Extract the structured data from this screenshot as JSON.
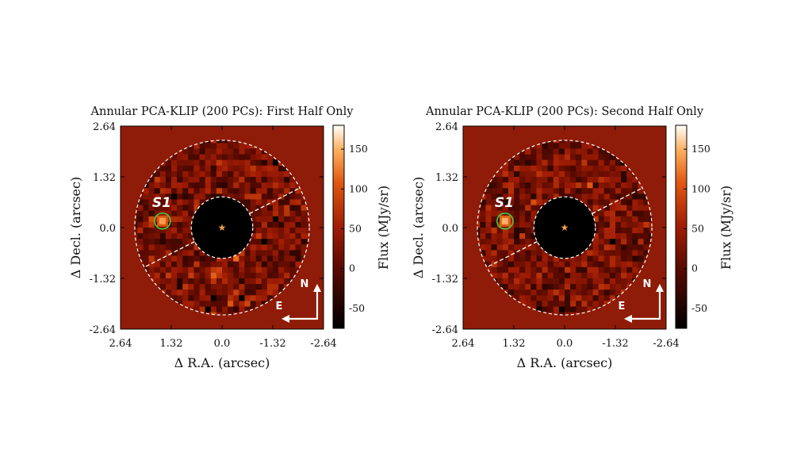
{
  "chart_data": [
    {
      "type": "heatmap",
      "title": "Annular PCA-KLIP (200 PCs): First Half Only",
      "xlabel": "Δ R.A. (arcsec)",
      "ylabel": "Δ Decl. (arcsec)",
      "xlim": [
        2.64,
        -2.64
      ],
      "ylim": [
        -2.64,
        2.64
      ],
      "xticks": [
        "2.64",
        "1.32",
        "0.0",
        "-1.32",
        "-2.64"
      ],
      "yticks": [
        "2.64",
        "1.32",
        "0.0",
        "-1.32",
        "-2.64"
      ],
      "colorbar": {
        "label": "Flux (MJy/sr)",
        "range": [
          -75,
          180
        ],
        "ticks": [
          "150",
          "100",
          "50",
          "0",
          "-50"
        ],
        "tick_values": [
          150,
          100,
          50,
          0,
          -50
        ]
      },
      "mask": {
        "inner_radius_arcsec": 0.8,
        "outer_radius_arcsec": 2.27,
        "divider_angle_deg": 27
      },
      "star": {
        "x": 0.0,
        "y": 0.0
      },
      "source": {
        "label": "S1",
        "x": 1.55,
        "y": 0.17,
        "peak_flux": 140
      },
      "compass": {
        "north": "N",
        "east": "E"
      },
      "seed": 11
    },
    {
      "type": "heatmap",
      "title": "Annular PCA-KLIP (200 PCs): Second Half Only",
      "xlabel": "Δ R.A. (arcsec)",
      "ylabel": "Δ Decl. (arcsec)",
      "xlim": [
        2.64,
        -2.64
      ],
      "ylim": [
        -2.64,
        2.64
      ],
      "xticks": [
        "2.64",
        "1.32",
        "0.0",
        "-1.32",
        "-2.64"
      ],
      "yticks": [
        "2.64",
        "1.32",
        "0.0",
        "-1.32",
        "-2.64"
      ],
      "colorbar": {
        "label": "Flux (MJy/sr)",
        "range": [
          -75,
          180
        ],
        "ticks": [
          "150",
          "100",
          "50",
          "0",
          "-50"
        ],
        "tick_values": [
          150,
          100,
          50,
          0,
          -50
        ]
      },
      "mask": {
        "inner_radius_arcsec": 0.8,
        "outer_radius_arcsec": 2.27,
        "divider_angle_deg": 27
      },
      "star": {
        "x": 0.0,
        "y": 0.0
      },
      "source": {
        "label": "S1",
        "x": 1.55,
        "y": 0.17,
        "peak_flux": 150
      },
      "compass": {
        "north": "N",
        "east": "E"
      },
      "seed": 29
    }
  ],
  "colors": {
    "background_flux": "#8f1c08",
    "mask_fill": "#000000",
    "dashed_line": "#ffffff",
    "source_circle": "#3cd23c",
    "star_marker": "#f0a050"
  }
}
